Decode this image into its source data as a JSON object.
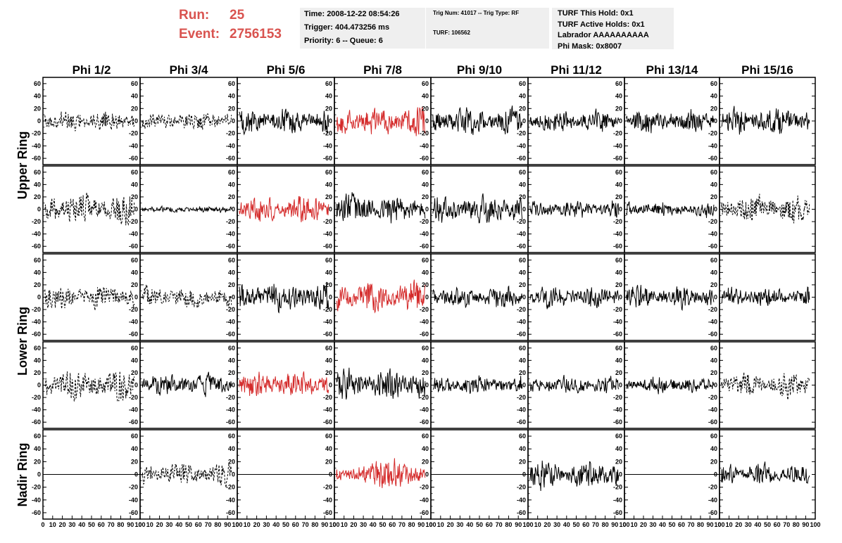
{
  "header": {
    "run_label": "Run:",
    "run_value": "25",
    "event_label": "Event:",
    "event_value": "2756153",
    "time": "Time: 2008-12-22 08:54:26",
    "trigger": "Trigger: 404.473256 ms",
    "priority_queue": "Priority: 6 -- Queue: 6",
    "trig_num_type": "Trig Num: 41017 -- Trig Type: RF",
    "turf": "TURF: 106562",
    "turf_this_hold": "TURF This Hold: 0x1",
    "turf_active_holds": "TURF Active Holds: 0x1",
    "labrador": "Labrador AAAAAAAAAA",
    "phi_mask": "Phi Mask: 0x8007"
  },
  "colors": {
    "accent": "#d9534f",
    "trace_red": "#d42a2a",
    "trace_black": "#000000",
    "info_bg": "#efefef"
  },
  "chart_data": {
    "type": "line",
    "columns": [
      "Phi 1/2",
      "Phi 3/4",
      "Phi 5/6",
      "Phi 7/8",
      "Phi 9/10",
      "Phi 11/12",
      "Phi 13/14",
      "Phi 15/16"
    ],
    "rows": [
      "Upper Ring",
      "Lower Ring",
      "Nadir Ring"
    ],
    "ylim": [
      -70,
      70
    ],
    "y_ticks": [
      60,
      40,
      20,
      0,
      -20,
      -40,
      -60
    ],
    "xlim": [
      0,
      100
    ],
    "x_ticks": [
      0,
      10,
      20,
      30,
      40,
      50,
      60,
      70,
      80,
      90,
      100
    ],
    "grid": false,
    "panels": [
      [
        {
          "style": "dashed",
          "color": "black",
          "amplitude": 20,
          "seed": 11
        },
        {
          "style": "dashed",
          "color": "black",
          "amplitude": 17,
          "seed": 12
        },
        {
          "style": "solid",
          "color": "black",
          "amplitude": 27,
          "seed": 13
        },
        {
          "style": "solid",
          "color": "red",
          "amplitude": 30,
          "seed": 14
        },
        {
          "style": "solid",
          "color": "black",
          "amplitude": 27,
          "seed": 15
        },
        {
          "style": "solid",
          "color": "black",
          "amplitude": 23,
          "seed": 16
        },
        {
          "style": "solid",
          "color": "black",
          "amplitude": 23,
          "seed": 17
        },
        {
          "style": "solid",
          "color": "black",
          "amplitude": 26,
          "seed": 18
        }
      ],
      [
        {
          "style": "dashed",
          "color": "black",
          "amplitude": 32,
          "seed": 21
        },
        {
          "style": "solid",
          "color": "black",
          "amplitude": 4,
          "seed": 22
        },
        {
          "style": "solid",
          "color": "red",
          "amplitude": 27,
          "seed": 23
        },
        {
          "style": "solid",
          "color": "black",
          "amplitude": 30,
          "seed": 24
        },
        {
          "style": "solid",
          "color": "black",
          "amplitude": 28,
          "seed": 25
        },
        {
          "style": "solid",
          "color": "black",
          "amplitude": 16,
          "seed": 26
        },
        {
          "style": "solid",
          "color": "black",
          "amplitude": 14,
          "seed": 27
        },
        {
          "style": "dashed",
          "color": "black",
          "amplitude": 30,
          "seed": 28
        }
      ],
      [
        {
          "style": "dashed",
          "color": "black",
          "amplitude": 24,
          "seed": 31
        },
        {
          "style": "dashed",
          "color": "black",
          "amplitude": 20,
          "seed": 32
        },
        {
          "style": "solid",
          "color": "black",
          "amplitude": 30,
          "seed": 33
        },
        {
          "style": "solid",
          "color": "red",
          "amplitude": 30,
          "seed": 34
        },
        {
          "style": "solid",
          "color": "black",
          "amplitude": 20,
          "seed": 35
        },
        {
          "style": "solid",
          "color": "black",
          "amplitude": 20,
          "seed": 36
        },
        {
          "style": "solid",
          "color": "black",
          "amplitude": 22,
          "seed": 37
        },
        {
          "style": "solid",
          "color": "black",
          "amplitude": 18,
          "seed": 38
        }
      ],
      [
        {
          "style": "dashed",
          "color": "black",
          "amplitude": 32,
          "seed": 41
        },
        {
          "style": "solid",
          "color": "black",
          "amplitude": 22,
          "seed": 42
        },
        {
          "style": "solid",
          "color": "red",
          "amplitude": 26,
          "seed": 43
        },
        {
          "style": "solid",
          "color": "black",
          "amplitude": 30,
          "seed": 44
        },
        {
          "style": "solid",
          "color": "black",
          "amplitude": 18,
          "seed": 45
        },
        {
          "style": "solid",
          "color": "black",
          "amplitude": 16,
          "seed": 46
        },
        {
          "style": "solid",
          "color": "black",
          "amplitude": 14,
          "seed": 47
        },
        {
          "style": "dashed",
          "color": "black",
          "amplitude": 26,
          "seed": 48
        }
      ],
      [
        {
          "style": "flat",
          "color": "black",
          "amplitude": 0,
          "seed": 51
        },
        {
          "style": "dashed",
          "color": "black",
          "amplitude": 22,
          "seed": 52
        },
        {
          "style": "flat",
          "color": "black",
          "amplitude": 0,
          "seed": 53
        },
        {
          "style": "solid",
          "color": "red",
          "amplitude": 28,
          "seed": 54
        },
        {
          "style": "flat",
          "color": "black",
          "amplitude": 0,
          "seed": 55
        },
        {
          "style": "solid",
          "color": "black",
          "amplitude": 28,
          "seed": 56
        },
        {
          "style": "flat",
          "color": "black",
          "amplitude": 0,
          "seed": 57
        },
        {
          "style": "solid",
          "color": "black",
          "amplitude": 20,
          "seed": 58
        }
      ]
    ]
  }
}
